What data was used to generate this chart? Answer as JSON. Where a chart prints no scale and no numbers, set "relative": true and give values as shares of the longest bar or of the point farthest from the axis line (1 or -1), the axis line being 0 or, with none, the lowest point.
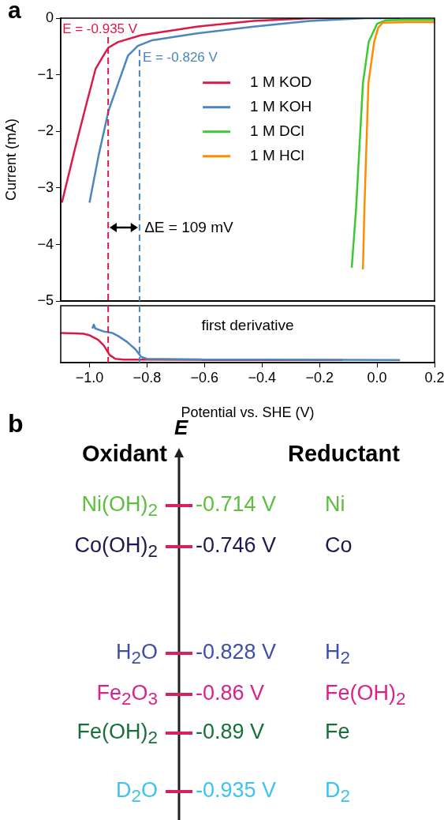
{
  "chart_data": [
    {
      "type": "line",
      "ylabel": "Current (mA)",
      "xlim": [
        -1.1,
        0.2
      ],
      "ylim": [
        -5,
        0
      ],
      "yticks": [
        0,
        {
          "value": -1,
          "label": "−1"
        },
        {
          "value": -2,
          "label": "−2"
        },
        {
          "value": -3,
          "label": "−3"
        },
        {
          "value": -4,
          "label": "−4"
        },
        {
          "value": -5,
          "label": "−5"
        }
      ],
      "tick_labels": "y",
      "legend": "top",
      "series": [
        {
          "name": "1 M KOD",
          "color": "#dc1a47",
          "x": [
            -1.096,
            -1.05,
            -1.017,
            -0.979,
            -0.949,
            -0.934,
            -0.9,
            -0.82,
            -0.626,
            -0.43,
            -0.23,
            -0.1
          ],
          "values": [
            -3.26,
            -2.3,
            -1.64,
            -0.9,
            -0.64,
            -0.52,
            -0.42,
            -0.3,
            -0.15,
            -0.05,
            0,
            0
          ]
        },
        {
          "name": "1 M KOH",
          "color": "#4a86c0",
          "x": [
            -1.0,
            -0.968,
            -0.934,
            -0.9,
            -0.866,
            -0.832,
            -0.782,
            -0.626,
            -0.43,
            -0.234,
            -0.04,
            0.08
          ],
          "values": [
            -3.26,
            -2.42,
            -1.64,
            -1.15,
            -0.66,
            -0.49,
            -0.39,
            -0.27,
            -0.15,
            -0.05,
            0,
            0
          ]
        },
        {
          "name": "1 M DCl",
          "color": "#3ec934",
          "x": [
            -0.088,
            -0.073,
            -0.049,
            -0.029,
            0.0,
            0.029,
            0.1,
            0.2
          ],
          "values": [
            -4.41,
            -3.38,
            -1.15,
            -0.42,
            -0.1,
            -0.04,
            -0.03,
            -0.03
          ]
        },
        {
          "name": "1 M HCl",
          "color": "#ff8c00",
          "x": [
            -0.049,
            -0.044,
            -0.03,
            -0.01,
            0.004,
            0.02,
            0.1,
            0.2
          ],
          "values": [
            -4.44,
            -3.38,
            -1.15,
            -0.42,
            -0.17,
            -0.08,
            -0.07,
            -0.07
          ]
        }
      ],
      "ref_lines": [
        {
          "axis": "x",
          "value": -0.935,
          "label": "E = -0.935 V",
          "color": "#dc1a47",
          "line_style": "dashed"
        },
        {
          "axis": "x",
          "value": -0.826,
          "label": "E = -0.826 V",
          "color": "#4a86c0",
          "line_style": "dashed"
        }
      ],
      "annotations": [
        "a",
        "ΔE = 109 mV"
      ]
    },
    {
      "type": "line",
      "relative": true,
      "xlabel": "Potential vs. SHE (V)",
      "xlim": [
        -1.1,
        0.2
      ],
      "xticks": [
        {
          "value": -1.0,
          "label": "−1.0"
        },
        {
          "value": -0.8,
          "label": "−0.8"
        },
        {
          "value": -0.6,
          "label": "−0.6"
        },
        {
          "value": -0.4,
          "label": "−0.4"
        },
        {
          "value": -0.2,
          "label": "−0.2"
        },
        {
          "value": 0,
          "label": "0.0"
        },
        {
          "value": 0.2,
          "label": "0.2"
        }
      ],
      "tick_labels": "x",
      "series": [
        {
          "color": "#dc1a47",
          "x": [
            -1.1,
            -1.05,
            -1.02,
            -1.0,
            -0.97,
            -0.95,
            -0.93,
            -0.91,
            -0.88,
            -0.8,
            -0.6,
            -0.12
          ],
          "values": [
            0.78,
            0.77,
            0.76,
            0.72,
            0.6,
            0.45,
            0.2,
            0.1,
            0.08,
            0.08,
            0.07,
            0.07
          ]
        },
        {
          "color": "#4a86c0",
          "x": [
            -0.99,
            -0.985,
            -0.98,
            -0.95,
            -0.92,
            -0.9,
            -0.87,
            -0.84,
            -0.82,
            -0.8,
            -0.6,
            -0.4,
            0.08
          ],
          "values": [
            0.9,
            1.0,
            0.9,
            0.82,
            0.78,
            0.7,
            0.55,
            0.35,
            0.15,
            0.1,
            0.08,
            0.08,
            0.07
          ]
        }
      ],
      "ref_lines": [
        {
          "axis": "x",
          "value": -0.935,
          "color": "#dc1a47",
          "line_style": "dashed"
        },
        {
          "axis": "x",
          "value": -0.826,
          "color": "#4a86c0",
          "line_style": "dashed"
        }
      ],
      "annotations": [
        "first derivative"
      ]
    },
    {
      "type": "other",
      "ylabel": "E",
      "color": "#d6245a",
      "categories": [
        "Ni(OH)$_{2}$",
        "Co(OH)$_{2}$",
        "H$_{2}$O",
        "Fe$_{2}$O$_{3}$",
        "Fe(OH)$_{2}$",
        "D$_{2}$O"
      ],
      "y2_categories": [
        "Ni",
        "Co",
        "H$_{2}$",
        "Fe(OH)$_{2}$",
        "Fe",
        "D$_{2}$"
      ],
      "values": [
        -0.714,
        -0.746,
        -0.828,
        -0.86,
        -0.89,
        -0.935
      ],
      "value_labels": [
        "-0.714 V",
        "-0.746 V",
        "-0.828 V",
        "-0.86 V",
        "-0.89 V",
        "-0.935 V"
      ],
      "colors": [
        "#5cbf3f",
        "#1c1a4f",
        "#3f4fa8",
        "#d6248a",
        "#17703a",
        "#3ec3ee"
      ],
      "annotations": [
        "b",
        "Oxidant",
        "Reductant"
      ]
    }
  ]
}
